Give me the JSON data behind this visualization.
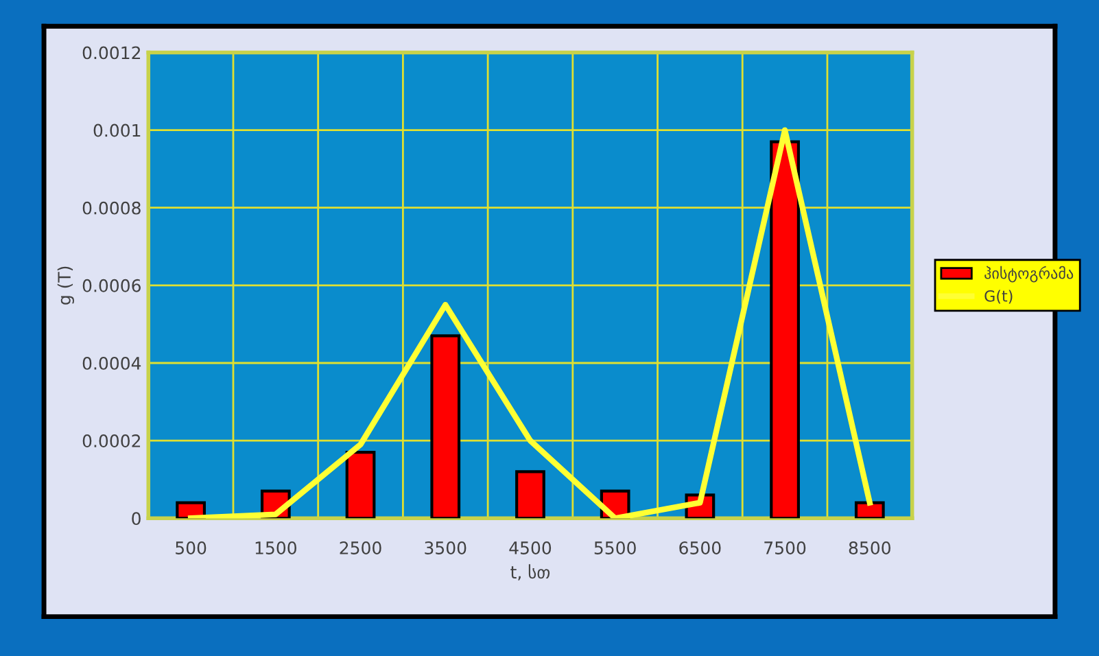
{
  "chart_data": {
    "type": "bar",
    "xlabel": "t, სთ",
    "ylabel": "g (T)",
    "categories": [
      "500",
      "1500",
      "2500",
      "3500",
      "4500",
      "5500",
      "6500",
      "7500",
      "8500"
    ],
    "series": [
      {
        "name": "ჰისტოგრამა",
        "color": "#ff0000",
        "values": [
          4e-05,
          7e-05,
          0.00017,
          0.00047,
          0.00012,
          7e-05,
          6e-05,
          0.00097,
          4e-05
        ]
      },
      {
        "name": "G(t)",
        "type": "line",
        "color": "#ffff33",
        "values": [
          0,
          1e-05,
          0.00019,
          0.00055,
          0.0002,
          0,
          4e-05,
          0.001,
          4e-05
        ]
      }
    ],
    "ylim": [
      0,
      0.0012
    ],
    "yticks": [
      0,
      0.0002,
      0.0004,
      0.0006,
      0.0008,
      0.001,
      0.0012
    ],
    "grid": true,
    "legend": "right",
    "marker": "none"
  }
}
